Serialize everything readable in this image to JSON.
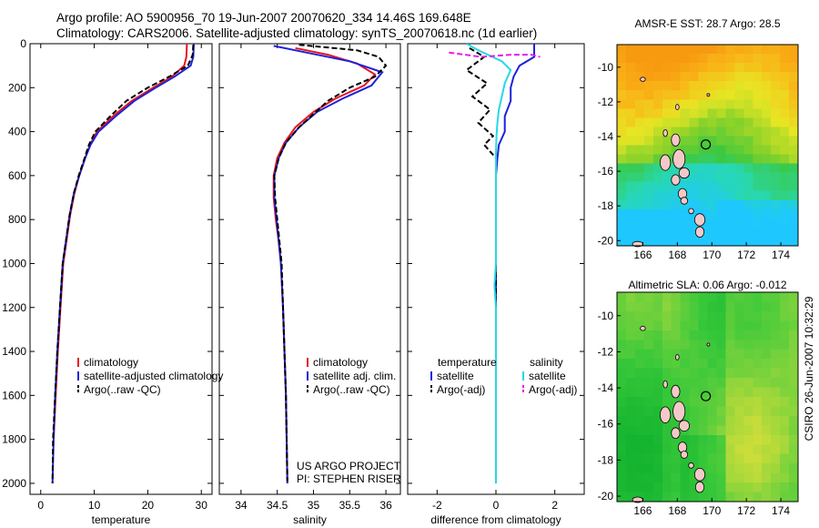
{
  "header": {
    "title_line1": "Argo profile: AO 5900956_70 19-Jun-2007 20070620_334 14.46S 169.648E",
    "title_line2": "Climatology: CARS2006. Satellite-adjusted climatology: synTS_20070618.nc (1d earlier)"
  },
  "side_stamp": "CSIRO 26-Jun-2007 10:32:29",
  "colors": {
    "red": "#e8141e",
    "blue": "#1e22d8",
    "black": "#000000",
    "cyan": "#27d8e6",
    "magenta": "#e61ee6"
  },
  "chart_data": [
    {
      "id": "temperature",
      "type": "line",
      "title": "",
      "xlabel": "temperature",
      "ylabel": "",
      "xlim": [
        -2,
        32
      ],
      "ylim": [
        2050,
        0
      ],
      "xticks": [
        0,
        10,
        20,
        30
      ],
      "yticks": [
        0,
        200,
        400,
        600,
        800,
        1000,
        1200,
        1400,
        1600,
        1800,
        2000
      ],
      "legend": {
        "position": "lower-left",
        "entries": [
          "climatology",
          "satellite-adjusted climatology",
          "Argo(..raw -QC)"
        ]
      },
      "series": [
        {
          "name": "climatology",
          "color": "red",
          "dash": "",
          "points": [
            [
              27.3,
              0
            ],
            [
              27.2,
              60
            ],
            [
              26.8,
              100
            ],
            [
              24.5,
              150
            ],
            [
              21,
              200
            ],
            [
              17,
              260
            ],
            [
              13.5,
              330
            ],
            [
              10.5,
              400
            ],
            [
              9.2,
              460
            ],
            [
              8.3,
              520
            ],
            [
              7.2,
              600
            ],
            [
              6.3,
              680
            ],
            [
              5.5,
              780
            ],
            [
              4.8,
              900
            ],
            [
              4.2,
              1000
            ],
            [
              3.7,
              1200
            ],
            [
              3.2,
              1400
            ],
            [
              2.8,
              1600
            ],
            [
              2.4,
              1800
            ]
          ]
        },
        {
          "name": "satellite-adjusted climatology",
          "color": "blue",
          "dash": "",
          "points": [
            [
              28.6,
              0
            ],
            [
              28.5,
              60
            ],
            [
              28,
              100
            ],
            [
              25,
              150
            ],
            [
              21.5,
              200
            ],
            [
              17.5,
              260
            ],
            [
              14,
              330
            ],
            [
              10.8,
              400
            ],
            [
              9.3,
              460
            ],
            [
              8.3,
              520
            ],
            [
              7.2,
              600
            ],
            [
              6.2,
              680
            ],
            [
              5.4,
              780
            ],
            [
              4.7,
              900
            ],
            [
              4.1,
              1000
            ],
            [
              3.6,
              1200
            ],
            [
              3.1,
              1400
            ],
            [
              2.7,
              1600
            ],
            [
              2.4,
              1800
            ],
            [
              2.2,
              2000
            ]
          ]
        },
        {
          "name": "Argo(..raw -QC)",
          "color": "black",
          "dash": "6,3",
          "points": [
            [
              28.5,
              5
            ],
            [
              28.4,
              50
            ],
            [
              27.5,
              100
            ],
            [
              24,
              150
            ],
            [
              20,
              200
            ],
            [
              16,
              260
            ],
            [
              13,
              330
            ],
            [
              10.2,
              400
            ],
            [
              9,
              460
            ],
            [
              8.2,
              520
            ],
            [
              7.1,
              600
            ],
            [
              6.2,
              680
            ],
            [
              5.4,
              780
            ],
            [
              4.7,
              900
            ],
            [
              4.1,
              1000
            ],
            [
              3.6,
              1200
            ],
            [
              3.1,
              1400
            ],
            [
              2.7,
              1600
            ],
            [
              2.3,
              1800
            ],
            [
              2.2,
              2000
            ]
          ]
        }
      ]
    },
    {
      "id": "salinity",
      "type": "line",
      "title": "",
      "xlabel": "salinity",
      "ylabel": "",
      "xlim": [
        33.7,
        36.2
      ],
      "ylim": [
        2050,
        0
      ],
      "xticks": [
        34,
        34.5,
        35,
        35.5,
        36
      ],
      "yticks": [
        0,
        200,
        400,
        600,
        800,
        1000,
        1200,
        1400,
        1600,
        1800,
        2000
      ],
      "legend": {
        "position": "lower-right",
        "entries": [
          "climatology",
          "satellite adj. clim.",
          "Argo(..raw -QC)"
        ]
      },
      "annotation_lines": [
        "US ARGO PROJECT",
        "PI: STEPHEN RISER"
      ],
      "series": [
        {
          "name": "climatology",
          "color": "red",
          "dash": "",
          "points": [
            [
              34.75,
              20
            ],
            [
              35.2,
              50
            ],
            [
              35.6,
              90
            ],
            [
              35.85,
              140
            ],
            [
              35.7,
              190
            ],
            [
              35.3,
              250
            ],
            [
              35.0,
              310
            ],
            [
              34.75,
              380
            ],
            [
              34.6,
              450
            ],
            [
              34.5,
              520
            ],
            [
              34.45,
              600
            ],
            [
              34.45,
              700
            ],
            [
              34.48,
              800
            ],
            [
              34.52,
              900
            ],
            [
              34.55,
              1000
            ],
            [
              34.58,
              1200
            ],
            [
              34.6,
              1400
            ],
            [
              34.62,
              1600
            ],
            [
              34.63,
              1800
            ],
            [
              34.64,
              2000
            ]
          ]
        },
        {
          "name": "satellite adj. clim.",
          "color": "blue",
          "dash": "",
          "points": [
            [
              34.45,
              10
            ],
            [
              34.9,
              40
            ],
            [
              35.5,
              80
            ],
            [
              35.95,
              130
            ],
            [
              35.8,
              190
            ],
            [
              35.4,
              250
            ],
            [
              35.05,
              310
            ],
            [
              34.8,
              380
            ],
            [
              34.62,
              450
            ],
            [
              34.52,
              520
            ],
            [
              34.46,
              600
            ],
            [
              34.46,
              700
            ],
            [
              34.49,
              800
            ],
            [
              34.52,
              900
            ],
            [
              34.55,
              1000
            ],
            [
              34.58,
              1200
            ],
            [
              34.6,
              1400
            ],
            [
              34.62,
              1600
            ],
            [
              34.63,
              1800
            ],
            [
              34.64,
              2000
            ]
          ]
        },
        {
          "name": "Argo(..raw -QC)",
          "color": "black",
          "dash": "6,3",
          "points": [
            [
              34.8,
              5
            ],
            [
              35.6,
              30
            ],
            [
              35.9,
              60
            ],
            [
              36.0,
              100
            ],
            [
              35.85,
              150
            ],
            [
              35.5,
              200
            ],
            [
              35.2,
              260
            ],
            [
              35.0,
              320
            ],
            [
              34.8,
              380
            ],
            [
              34.62,
              450
            ],
            [
              34.52,
              520
            ],
            [
              34.46,
              600
            ],
            [
              34.47,
              700
            ],
            [
              34.5,
              800
            ],
            [
              34.53,
              900
            ],
            [
              34.56,
              1000
            ],
            [
              34.58,
              1200
            ],
            [
              34.6,
              1400
            ],
            [
              34.62,
              1600
            ],
            [
              34.63,
              1800
            ],
            [
              34.64,
              1990
            ]
          ]
        }
      ]
    },
    {
      "id": "difference",
      "type": "line",
      "title": "",
      "xlabel": "difference from climatology",
      "ylabel": "",
      "xlim": [
        -3,
        3
      ],
      "ylim": [
        2050,
        0
      ],
      "xticks": [
        -2,
        0,
        2
      ],
      "yticks": [
        0,
        200,
        400,
        600,
        800,
        1000,
        1200,
        1400,
        1600,
        1800,
        2000
      ],
      "legend": {
        "position": "lower",
        "column_titles": [
          "temperature",
          "salinity"
        ],
        "entries": [
          "satellite",
          "Argo(-adj)",
          "satellite",
          "Argo(-adj)"
        ]
      },
      "series": [
        {
          "name": "temperature satellite",
          "color": "blue",
          "dash": "",
          "points": [
            [
              1.3,
              0
            ],
            [
              1.3,
              60
            ],
            [
              0.8,
              100
            ],
            [
              0.6,
              150
            ],
            [
              0.5,
              200
            ],
            [
              0.5,
              260
            ],
            [
              0.3,
              330
            ],
            [
              0.3,
              400
            ],
            [
              0.1,
              460
            ],
            [
              0.05,
              520
            ],
            [
              0,
              600
            ],
            [
              0,
              800
            ],
            [
              0,
              1000
            ],
            [
              0,
              1400
            ],
            [
              0,
              2000
            ]
          ]
        },
        {
          "name": "temperature Argo(-adj)",
          "color": "black",
          "dash": "6,3",
          "points": [
            [
              -0.9,
              20
            ],
            [
              -0.4,
              60
            ],
            [
              -1.0,
              120
            ],
            [
              -0.3,
              180
            ],
            [
              -0.8,
              240
            ],
            [
              -0.2,
              300
            ],
            [
              -0.6,
              360
            ],
            [
              -0.1,
              420
            ],
            [
              -0.4,
              460
            ],
            [
              0,
              520
            ],
            [
              0,
              600
            ],
            [
              0,
              800
            ],
            [
              0,
              1000
            ],
            [
              0,
              2000
            ]
          ]
        },
        {
          "name": "salinity satellite",
          "color": "cyan",
          "dash": "",
          "points": [
            [
              -1.0,
              0
            ],
            [
              -0.6,
              30
            ],
            [
              0.2,
              80
            ],
            [
              0.5,
              120
            ],
            [
              0.3,
              180
            ],
            [
              0.2,
              240
            ],
            [
              0.1,
              300
            ],
            [
              0.05,
              360
            ],
            [
              0.02,
              420
            ],
            [
              0,
              500
            ],
            [
              0,
              700
            ],
            [
              0,
              800
            ],
            [
              0,
              1000
            ],
            [
              -0.05,
              1100
            ],
            [
              0,
              1200
            ],
            [
              0,
              2000
            ]
          ]
        },
        {
          "name": "salinity Argo(-adj)",
          "color": "magenta",
          "dash": "6,3",
          "points": [
            [
              -1.6,
              40
            ],
            [
              -0.5,
              60
            ],
            [
              0.5,
              50
            ],
            [
              1.2,
              50
            ],
            [
              1.5,
              60
            ]
          ]
        }
      ]
    },
    {
      "id": "sst_map",
      "type": "heatmap",
      "title": "AMSR-E SST: 28.7 Argo: 28.5",
      "xlabel": "",
      "ylabel": "",
      "xlim": [
        164.5,
        175
      ],
      "ylim": [
        -20.3,
        -8.7
      ],
      "xticks": [
        166,
        168,
        170,
        172,
        174
      ],
      "yticks": [
        -10,
        -12,
        -14,
        -16,
        -18,
        -20
      ],
      "float_position": [
        169.648,
        -14.46
      ]
    },
    {
      "id": "sla_map",
      "type": "heatmap",
      "title": "Altimetric SLA: 0.06 Argo: -0.012",
      "xlabel": "",
      "ylabel": "",
      "xlim": [
        164.5,
        175
      ],
      "ylim": [
        -20.3,
        -8.7
      ],
      "xticks": [
        166,
        168,
        170,
        172,
        174
      ],
      "yticks": [
        -10,
        -12,
        -14,
        -16,
        -18,
        -20
      ],
      "float_position": [
        169.648,
        -14.46
      ]
    }
  ]
}
